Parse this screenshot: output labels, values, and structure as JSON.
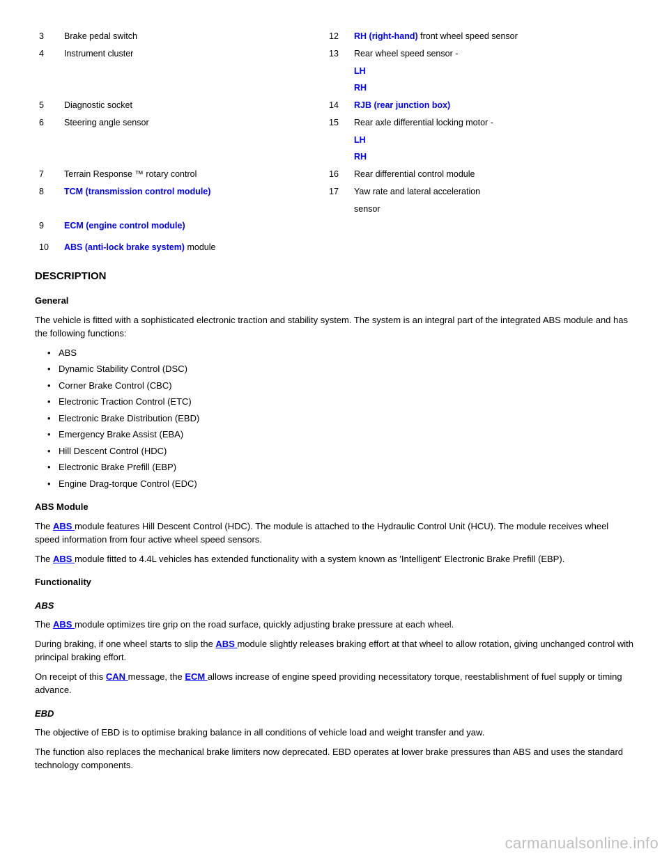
{
  "legend": {
    "rows": [
      {
        "num": "3",
        "label": "Brake pedal switch",
        "mid": "12",
        "midLinkPrefix": "",
        "midLink": "RH (right-hand)",
        "midSuffix": " front wheel speed sensor"
      },
      {
        "num": "4",
        "label": "Instrument cluster",
        "mid": "13",
        "midText": "Rear wheel speed sensor -"
      },
      {
        "num": "",
        "label": "",
        "mid": "",
        "midLink": "LH",
        "midIndented": true
      },
      {
        "num": "",
        "label": "",
        "mid": "",
        "midLink": "RH",
        "midIndented": true
      },
      {
        "num": "5",
        "label": "Diagnostic socket",
        "mid": "14",
        "midLink": "RJB (rear junction box)"
      },
      {
        "num": "6",
        "label": "Steering angle sensor",
        "mid": "15",
        "midText": "Rear axle differential locking motor -"
      },
      {
        "num": "",
        "label": "",
        "mid": "",
        "midLink": "LH",
        "midIndented": true
      },
      {
        "num": "",
        "label": "",
        "mid": "",
        "midLink": "RH",
        "midIndented": true
      },
      {
        "num": "7",
        "label": "Terrain Response ™ rotary control",
        "mid": "16",
        "midText": "Rear differential control module"
      },
      {
        "num": "8",
        "label_link": "TCM (transmission control module)",
        "mid": "17",
        "midText": "Yaw rate and lateral acceleration"
      },
      {
        "num": "",
        "label": "",
        "mid": "",
        "midText": "sensor"
      },
      {
        "num": "9",
        "label_link": "ECM (engine control module)",
        "mid": "",
        "midText": ""
      },
      {
        "num": "",
        "label": "",
        "mid": "",
        "midText": ""
      },
      {
        "num": "10",
        "label_link": "ABS (anti-lock brake system)",
        "label_suffix": " module",
        "mid": "",
        "midText": ""
      }
    ]
  },
  "description_heading": "DESCRIPTION",
  "general_heading": "General",
  "general_para": "The vehicle is fitted with a sophisticated electronic traction and stability system. The system is an integral part of the integrated ABS module and has the following functions:",
  "functions": [
    "ABS",
    "Dynamic Stability Control (DSC)",
    "Corner Brake Control (CBC)",
    "Electronic Traction Control (ETC)",
    "Electronic Brake Distribution (EBD)",
    "Emergency Brake Assist (EBA)",
    "Hill Descent Control (HDC)",
    "Electronic Brake Prefill (EBP)",
    "Engine Drag-torque Control (EDC)"
  ],
  "abs_module_heading": "ABS Module",
  "abs_module_text_1_prefix": "The ",
  "abs_link": "ABS ",
  "abs_module_text_1": "module features Hill Descent Control (HDC). The module is attached to the Hydraulic Control Unit (HCU). The module receives wheel speed information from four active wheel speed sensors.",
  "abs_module_text_2_prefix": "The ",
  "abs_module_text_2": "module fitted to 4.4L vehicles has extended functionality with a system known as 'Intelligent' Electronic Brake Prefill (EBP).",
  "functionality_heading": "Functionality",
  "abs_heading_sub": "ABS",
  "abs_text_prefix": "The ",
  "abs_text_1": "module optimizes tire grip on the road surface, quickly adjusting brake pressure at each wheel.",
  "abs_text_2_prefix": "During braking, if one wheel starts to slip the ",
  "abs_text_2_suffix": "module slightly releases braking effort at that wheel to allow rotation, giving unchanged control with principal braking effort.",
  "can_text_prefix": "On receipt of this ",
  "can_link": "CAN ",
  "can_text_mid": "message, the ",
  "ecm_link": "ECM ",
  "can_text_suffix": "allows increase of engine speed providing necessitatory torque, reestablishment of fuel supply or timing advance.",
  "ebd_heading": "EBD",
  "ebd_text": "The objective of EBD is to optimise braking balance in all conditions of vehicle load and weight transfer and yaw.",
  "ebd_text_2": "The function also replaces the mechanical brake limiters now deprecated. EBD operates at lower brake pressures than ABS and uses the standard technology components.",
  "watermark": "carmanualsonline.info"
}
